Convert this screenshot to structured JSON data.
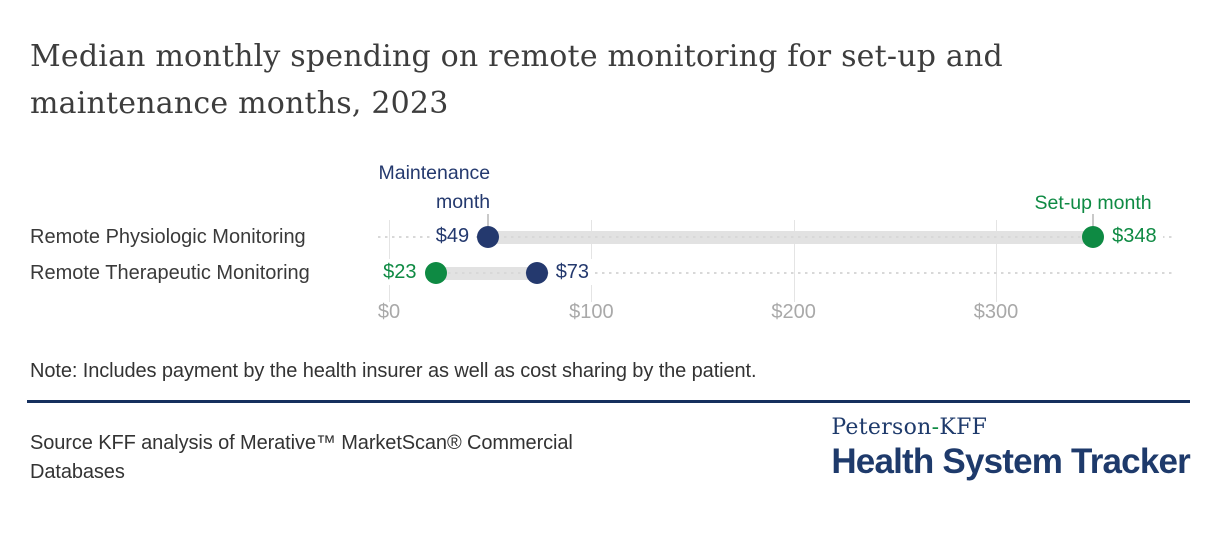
{
  "title": {
    "lines": [
      "Median monthly spending on remote monitoring for set-up and",
      "maintenance months, 2023"
    ]
  },
  "chart_data": {
    "type": "dumbbell",
    "title": "Median monthly spending on remote monitoring for set-up and maintenance months, 2023",
    "categories": [
      "Remote Physiologic Monitoring",
      "Remote Therapeutic Monitoring"
    ],
    "series": [
      {
        "name": "Maintenance month",
        "color": "#24396E",
        "values": [
          49,
          73
        ]
      },
      {
        "name": "Set-up month",
        "color": "#0E8A43",
        "values": [
          348,
          23
        ]
      }
    ],
    "rows": [
      {
        "category": "Remote Physiologic Monitoring",
        "points": [
          {
            "series": 0,
            "value": 49,
            "label": "$49",
            "label_side": "left"
          },
          {
            "series": 1,
            "value": 348,
            "label": "$348",
            "label_side": "right"
          }
        ]
      },
      {
        "category": "Remote Therapeutic Monitoring",
        "points": [
          {
            "series": 1,
            "value": 23,
            "label": "$23",
            "label_side": "left"
          },
          {
            "series": 0,
            "value": 73,
            "label": "$73",
            "label_side": "right"
          }
        ]
      }
    ],
    "annotations": [
      {
        "series": 0,
        "lines": [
          "Maintenance",
          "month"
        ],
        "anchor_value": 49,
        "align": "right"
      },
      {
        "series": 1,
        "lines": [
          "Set-up month"
        ],
        "anchor_value": 348,
        "align": "center"
      }
    ],
    "x_axis": {
      "ticks": [
        {
          "label": "$0",
          "value": 0
        },
        {
          "label": "$100",
          "value": 100
        },
        {
          "label": "$200",
          "value": 200
        },
        {
          "label": "$300",
          "value": 300
        }
      ],
      "range": [
        0,
        395
      ],
      "grid": true
    },
    "bar_color": "#E2E2E2",
    "leader_dot_color": "#D8D8D8",
    "gridline_color": "#E4E4E4",
    "axis_text_color": "#A9A9A9"
  },
  "note": {
    "text": "Note: Includes payment by the health insurer as well as cost sharing by the patient."
  },
  "source": {
    "lines": [
      "Source KFF analysis of Merative™ MarketScan® Commercial",
      "Databases"
    ]
  },
  "logo": {
    "top": {
      "left": "Peterson",
      "sep": "-",
      "right": "KFF"
    },
    "bottom": "Health System Tracker",
    "navy": "#1E3A6B",
    "green": "#0E8A43"
  },
  "divider_color": "#16305E"
}
